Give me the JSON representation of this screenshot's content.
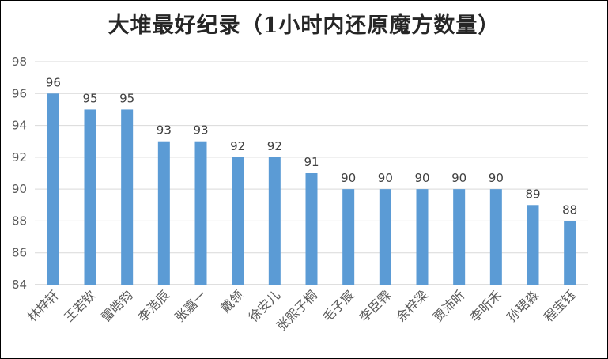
{
  "chart_data": {
    "type": "bar",
    "title": "大堆最好纪录（1小时内还原魔方数量）",
    "categories": [
      "林梓轩",
      "王若钦",
      "雷皓钧",
      "李浩辰",
      "张嘉一",
      "戴领",
      "徐安儿",
      "张熙子桐",
      "毛子宸",
      "李臣霖",
      "余梓梁",
      "贾沛昕",
      "李昕禾",
      "孙珺淼",
      "程宝钰"
    ],
    "values": [
      96,
      95,
      95,
      93,
      93,
      92,
      92,
      91,
      90,
      90,
      90,
      90,
      90,
      89,
      88
    ],
    "ylim": [
      84,
      98
    ],
    "yticks": [
      84,
      86,
      88,
      90,
      92,
      94,
      96,
      98
    ],
    "xlabel": "",
    "ylabel": "",
    "grid": true,
    "colors": {
      "bar": "#5B9BD5",
      "grid": "#D9D9D9",
      "axis": "#BFBFBF"
    }
  }
}
